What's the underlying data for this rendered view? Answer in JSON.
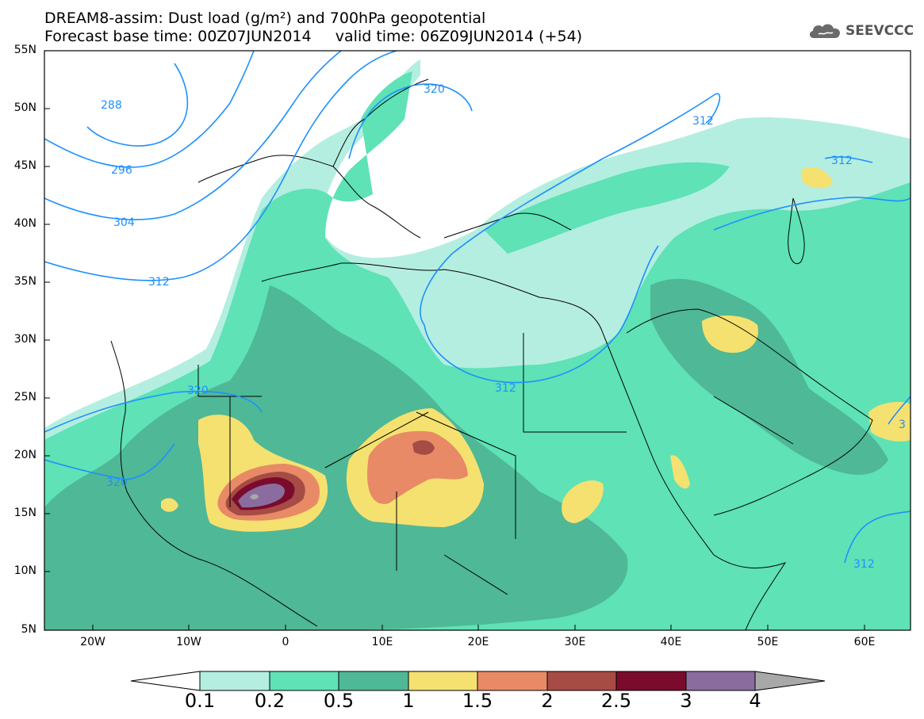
{
  "title": {
    "line1": "DREAM8-assim: Dust load (g/m²) and 700hPa geopotential",
    "line2": "Forecast base time: 00Z07JUN2014     valid time: 06Z09JUN2014 (+54)"
  },
  "logo": {
    "text": "SEEVCCC",
    "icon": "cloud-icon"
  },
  "axes": {
    "lat_labels": [
      "55N",
      "50N",
      "45N",
      "40N",
      "35N",
      "30N",
      "25N",
      "20N",
      "15N",
      "10N",
      "5N"
    ],
    "lon_labels": [
      "20W",
      "10W",
      "0",
      "10E",
      "20E",
      "30E",
      "40E",
      "50E",
      "60E"
    ]
  },
  "contours": {
    "color": "#1e90ff",
    "labels": [
      "288",
      "296",
      "304",
      "312",
      "320",
      "320",
      "320",
      "312",
      "312",
      "312",
      "312",
      "3"
    ]
  },
  "colorbar": {
    "levels": [
      "0.1",
      "0.2",
      "0.5",
      "1",
      "1.5",
      "2",
      "2.5",
      "3",
      "4"
    ],
    "colors": [
      "#b4eee0",
      "#5ee2b6",
      "#4fb896",
      "#f5e170",
      "#e88a66",
      "#a74b45",
      "#7a0b2d",
      "#8b6c9f"
    ],
    "under_color": "#ffffff",
    "over_color": "#a8a8a8"
  }
}
